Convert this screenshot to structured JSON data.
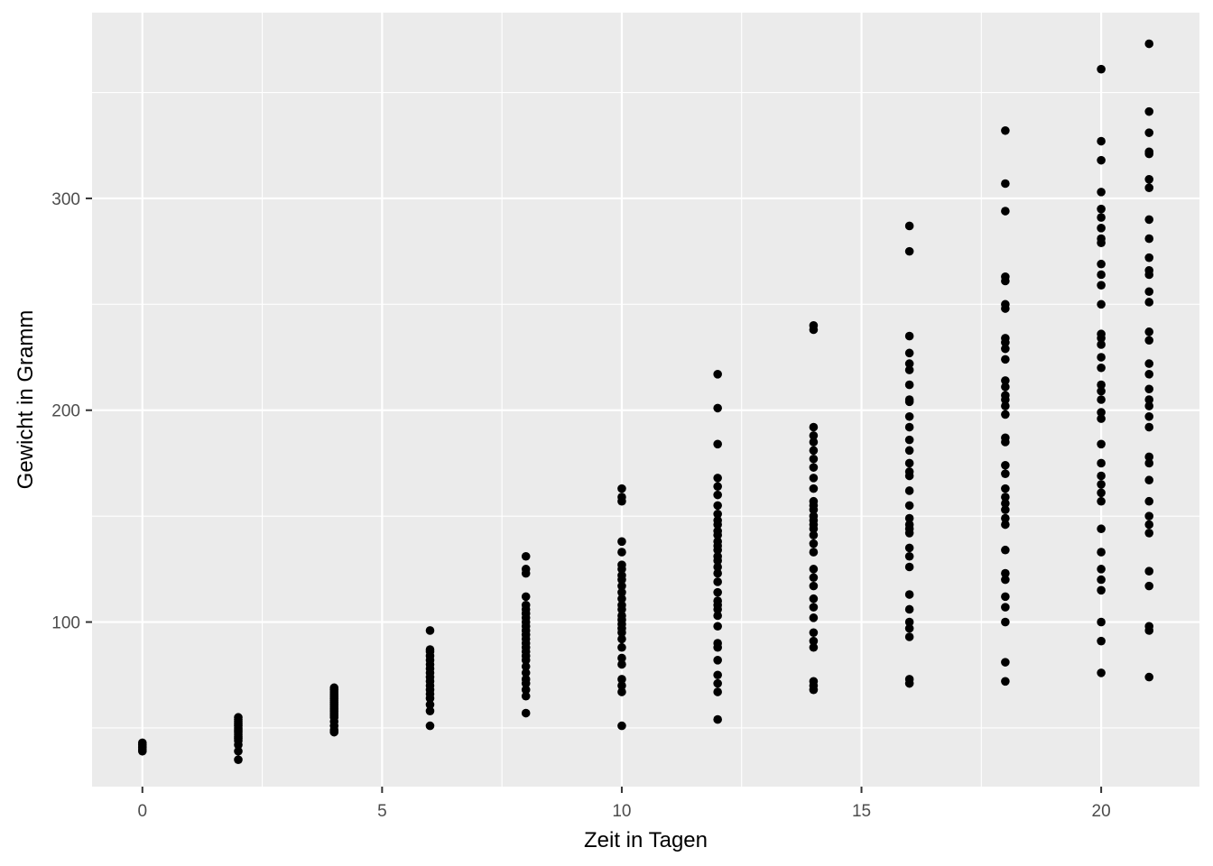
{
  "chart_data": {
    "type": "scatter",
    "title": "",
    "xlabel": "Zeit in Tagen",
    "ylabel": "Gewicht in Gramm",
    "xlim": [
      -1.05,
      22.05
    ],
    "ylim": [
      22.3,
      387.7
    ],
    "x_ticks": [
      0,
      5,
      10,
      15,
      20
    ],
    "x_tick_labels": [
      "0",
      "5",
      "10",
      "15",
      "20"
    ],
    "y_ticks": [
      100,
      200,
      300
    ],
    "y_tick_labels": [
      "100",
      "200",
      "300"
    ],
    "x_minor": [
      2.5,
      7.5,
      12.5,
      17.5
    ],
    "y_minor": [
      50,
      150,
      250,
      350
    ],
    "grid": true,
    "colors": {
      "panel": "#ebebeb",
      "grid": "#ffffff",
      "point": "#000000"
    },
    "points": [
      [
        0,
        39
      ],
      [
        0,
        40
      ],
      [
        0,
        41
      ],
      [
        0,
        42
      ],
      [
        0,
        43
      ],
      [
        2,
        35
      ],
      [
        2,
        39
      ],
      [
        2,
        42
      ],
      [
        2,
        44
      ],
      [
        2,
        45
      ],
      [
        2,
        46
      ],
      [
        2,
        47
      ],
      [
        2,
        48
      ],
      [
        2,
        49
      ],
      [
        2,
        50
      ],
      [
        2,
        51
      ],
      [
        2,
        52
      ],
      [
        2,
        53
      ],
      [
        2,
        54
      ],
      [
        2,
        55
      ],
      [
        4,
        48
      ],
      [
        4,
        49
      ],
      [
        4,
        51
      ],
      [
        4,
        53
      ],
      [
        4,
        55
      ],
      [
        4,
        56
      ],
      [
        4,
        57
      ],
      [
        4,
        58
      ],
      [
        4,
        59
      ],
      [
        4,
        60
      ],
      [
        4,
        61
      ],
      [
        4,
        62
      ],
      [
        4,
        63
      ],
      [
        4,
        64
      ],
      [
        4,
        65
      ],
      [
        4,
        66
      ],
      [
        4,
        67
      ],
      [
        4,
        68
      ],
      [
        4,
        69
      ],
      [
        6,
        51
      ],
      [
        6,
        58
      ],
      [
        6,
        61
      ],
      [
        6,
        64
      ],
      [
        6,
        66
      ],
      [
        6,
        68
      ],
      [
        6,
        70
      ],
      [
        6,
        72
      ],
      [
        6,
        74
      ],
      [
        6,
        76
      ],
      [
        6,
        78
      ],
      [
        6,
        80
      ],
      [
        6,
        82
      ],
      [
        6,
        84
      ],
      [
        6,
        86
      ],
      [
        6,
        87
      ],
      [
        6,
        96
      ],
      [
        8,
        57
      ],
      [
        8,
        65
      ],
      [
        8,
        68
      ],
      [
        8,
        71
      ],
      [
        8,
        73
      ],
      [
        8,
        76
      ],
      [
        8,
        79
      ],
      [
        8,
        82
      ],
      [
        8,
        84
      ],
      [
        8,
        86
      ],
      [
        8,
        88
      ],
      [
        8,
        90
      ],
      [
        8,
        92
      ],
      [
        8,
        94
      ],
      [
        8,
        96
      ],
      [
        8,
        98
      ],
      [
        8,
        100
      ],
      [
        8,
        102
      ],
      [
        8,
        104
      ],
      [
        8,
        106
      ],
      [
        8,
        108
      ],
      [
        8,
        112
      ],
      [
        8,
        123
      ],
      [
        8,
        125
      ],
      [
        8,
        131
      ],
      [
        10,
        51
      ],
      [
        10,
        67
      ],
      [
        10,
        70
      ],
      [
        10,
        73
      ],
      [
        10,
        80
      ],
      [
        10,
        83
      ],
      [
        10,
        88
      ],
      [
        10,
        92
      ],
      [
        10,
        95
      ],
      [
        10,
        97
      ],
      [
        10,
        99
      ],
      [
        10,
        101
      ],
      [
        10,
        103
      ],
      [
        10,
        106
      ],
      [
        10,
        108
      ],
      [
        10,
        111
      ],
      [
        10,
        114
      ],
      [
        10,
        117
      ],
      [
        10,
        120
      ],
      [
        10,
        122
      ],
      [
        10,
        125
      ],
      [
        10,
        127
      ],
      [
        10,
        133
      ],
      [
        10,
        138
      ],
      [
        10,
        157
      ],
      [
        10,
        159
      ],
      [
        10,
        163
      ],
      [
        12,
        54
      ],
      [
        12,
        67
      ],
      [
        12,
        71
      ],
      [
        12,
        75
      ],
      [
        12,
        82
      ],
      [
        12,
        88
      ],
      [
        12,
        90
      ],
      [
        12,
        98
      ],
      [
        12,
        103
      ],
      [
        12,
        106
      ],
      [
        12,
        108
      ],
      [
        12,
        110
      ],
      [
        12,
        114
      ],
      [
        12,
        119
      ],
      [
        12,
        123
      ],
      [
        12,
        126
      ],
      [
        12,
        129
      ],
      [
        12,
        131
      ],
      [
        12,
        134
      ],
      [
        12,
        136
      ],
      [
        12,
        138
      ],
      [
        12,
        141
      ],
      [
        12,
        143
      ],
      [
        12,
        146
      ],
      [
        12,
        148
      ],
      [
        12,
        151
      ],
      [
        12,
        155
      ],
      [
        12,
        160
      ],
      [
        12,
        164
      ],
      [
        12,
        168
      ],
      [
        12,
        184
      ],
      [
        12,
        201
      ],
      [
        12,
        217
      ],
      [
        14,
        68
      ],
      [
        14,
        70
      ],
      [
        14,
        72
      ],
      [
        14,
        88
      ],
      [
        14,
        91
      ],
      [
        14,
        95
      ],
      [
        14,
        102
      ],
      [
        14,
        107
      ],
      [
        14,
        111
      ],
      [
        14,
        117
      ],
      [
        14,
        121
      ],
      [
        14,
        125
      ],
      [
        14,
        133
      ],
      [
        14,
        137
      ],
      [
        14,
        141
      ],
      [
        14,
        144
      ],
      [
        14,
        146
      ],
      [
        14,
        148
      ],
      [
        14,
        150
      ],
      [
        14,
        153
      ],
      [
        14,
        155
      ],
      [
        14,
        157
      ],
      [
        14,
        163
      ],
      [
        14,
        168
      ],
      [
        14,
        173
      ],
      [
        14,
        177
      ],
      [
        14,
        181
      ],
      [
        14,
        185
      ],
      [
        14,
        188
      ],
      [
        14,
        192
      ],
      [
        14,
        238
      ],
      [
        14,
        240
      ],
      [
        16,
        71
      ],
      [
        16,
        73
      ],
      [
        16,
        93
      ],
      [
        16,
        97
      ],
      [
        16,
        100
      ],
      [
        16,
        106
      ],
      [
        16,
        113
      ],
      [
        16,
        126
      ],
      [
        16,
        131
      ],
      [
        16,
        135
      ],
      [
        16,
        142
      ],
      [
        16,
        144
      ],
      [
        16,
        146
      ],
      [
        16,
        149
      ],
      [
        16,
        155
      ],
      [
        16,
        162
      ],
      [
        16,
        169
      ],
      [
        16,
        171
      ],
      [
        16,
        175
      ],
      [
        16,
        181
      ],
      [
        16,
        186
      ],
      [
        16,
        192
      ],
      [
        16,
        197
      ],
      [
        16,
        204
      ],
      [
        16,
        205
      ],
      [
        16,
        212
      ],
      [
        16,
        219
      ],
      [
        16,
        222
      ],
      [
        16,
        227
      ],
      [
        16,
        235
      ],
      [
        16,
        275
      ],
      [
        16,
        287
      ],
      [
        18,
        72
      ],
      [
        18,
        81
      ],
      [
        18,
        100
      ],
      [
        18,
        107
      ],
      [
        18,
        112
      ],
      [
        18,
        120
      ],
      [
        18,
        123
      ],
      [
        18,
        134
      ],
      [
        18,
        146
      ],
      [
        18,
        149
      ],
      [
        18,
        153
      ],
      [
        18,
        156
      ],
      [
        18,
        159
      ],
      [
        18,
        163
      ],
      [
        18,
        170
      ],
      [
        18,
        174
      ],
      [
        18,
        185
      ],
      [
        18,
        187
      ],
      [
        18,
        198
      ],
      [
        18,
        202
      ],
      [
        18,
        205
      ],
      [
        18,
        207
      ],
      [
        18,
        211
      ],
      [
        18,
        214
      ],
      [
        18,
        224
      ],
      [
        18,
        229
      ],
      [
        18,
        232
      ],
      [
        18,
        234
      ],
      [
        18,
        248
      ],
      [
        18,
        250
      ],
      [
        18,
        261
      ],
      [
        18,
        263
      ],
      [
        18,
        294
      ],
      [
        18,
        307
      ],
      [
        18,
        332
      ],
      [
        20,
        76
      ],
      [
        20,
        91
      ],
      [
        20,
        100
      ],
      [
        20,
        115
      ],
      [
        20,
        120
      ],
      [
        20,
        125
      ],
      [
        20,
        133
      ],
      [
        20,
        144
      ],
      [
        20,
        157
      ],
      [
        20,
        161
      ],
      [
        20,
        165
      ],
      [
        20,
        169
      ],
      [
        20,
        175
      ],
      [
        20,
        184
      ],
      [
        20,
        196
      ],
      [
        20,
        199
      ],
      [
        20,
        205
      ],
      [
        20,
        209
      ],
      [
        20,
        212
      ],
      [
        20,
        220
      ],
      [
        20,
        225
      ],
      [
        20,
        231
      ],
      [
        20,
        234
      ],
      [
        20,
        236
      ],
      [
        20,
        250
      ],
      [
        20,
        259
      ],
      [
        20,
        264
      ],
      [
        20,
        269
      ],
      [
        20,
        279
      ],
      [
        20,
        281
      ],
      [
        20,
        286
      ],
      [
        20,
        291
      ],
      [
        20,
        295
      ],
      [
        20,
        303
      ],
      [
        20,
        318
      ],
      [
        20,
        327
      ],
      [
        20,
        361
      ],
      [
        21,
        74
      ],
      [
        21,
        96
      ],
      [
        21,
        98
      ],
      [
        21,
        117
      ],
      [
        21,
        124
      ],
      [
        21,
        142
      ],
      [
        21,
        146
      ],
      [
        21,
        150
      ],
      [
        21,
        157
      ],
      [
        21,
        167
      ],
      [
        21,
        175
      ],
      [
        21,
        178
      ],
      [
        21,
        192
      ],
      [
        21,
        197
      ],
      [
        21,
        202
      ],
      [
        21,
        205
      ],
      [
        21,
        210
      ],
      [
        21,
        217
      ],
      [
        21,
        222
      ],
      [
        21,
        233
      ],
      [
        21,
        237
      ],
      [
        21,
        251
      ],
      [
        21,
        256
      ],
      [
        21,
        264
      ],
      [
        21,
        266
      ],
      [
        21,
        272
      ],
      [
        21,
        281
      ],
      [
        21,
        290
      ],
      [
        21,
        305
      ],
      [
        21,
        309
      ],
      [
        21,
        321
      ],
      [
        21,
        322
      ],
      [
        21,
        331
      ],
      [
        21,
        341
      ],
      [
        21,
        373
      ]
    ]
  }
}
